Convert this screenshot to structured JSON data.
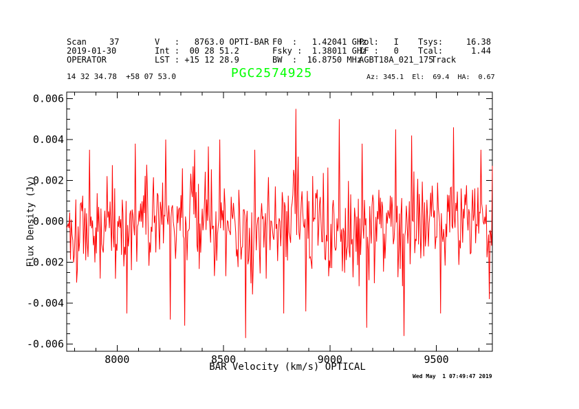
{
  "header": {
    "scan_label": "Scan",
    "scan_value": "37",
    "date": "2019-01-30",
    "operator": "OPERATOR",
    "velocity": "V   :   8763.0 OPTI-BAR",
    "integration": "Int :  00 28 51.2",
    "lst": "LST : +15 12 28.9",
    "f0": "F0  :   1.42041 GHz",
    "fsky": "Fsky :  1.38011 GHz",
    "bandwidth": "BW  :  16.8750 MHz",
    "pol": "Pol:   I",
    "if": "IF :   0",
    "project": "AGBT18A_021_175",
    "procedure": "Track",
    "tsys_label": "Tsys:",
    "tsys_value": "16.38",
    "tcal_label": "Tcal:",
    "tcal_value": "1.44"
  },
  "source": {
    "coords": "14 32 34.78  +58 07 53.0",
    "name": "PGC2574925",
    "azelha": "Az: 345.1  El:  69.4  HA:  0.67"
  },
  "footer": {
    "timestamp": "Wed May  1 07:49:47 2019"
  },
  "colors": {
    "spectrum": "#ff0000",
    "source_name": "#00ff00",
    "axis": "#000000",
    "text": "#000000",
    "background": "#ffffff"
  },
  "chart_data": {
    "type": "line",
    "title": "PGC2574925",
    "xlabel": "BAR Velocity (km/s) OPTICAL",
    "ylabel": "Flux Density (Jy)",
    "xlim": [
      7763,
      9763
    ],
    "ylim": [
      -0.00635,
      0.00632
    ],
    "grid": false,
    "legend": "none",
    "x_ticks": {
      "major_values": [
        8000,
        8500,
        9000,
        9500
      ],
      "major_labels": [
        "8000",
        "8500",
        "9000",
        "9500"
      ],
      "minor_step": 100
    },
    "y_ticks": {
      "major_values": [
        0.006,
        0.004,
        0.002,
        0.0,
        -0.002,
        -0.004,
        -0.006
      ],
      "major_labels": [
        "0.006",
        "0.004",
        "0.002",
        "0.000",
        "-0.002",
        "-0.004",
        "-0.006"
      ],
      "minor_step": 0.0005
    },
    "series_name": "flux density spectrum",
    "noise": {
      "seed": 1337,
      "n_points": 560,
      "sigma": 0.00125,
      "baseline_amp": 0.00035,
      "baseline_period_kms": 630,
      "baseline_min_at_kms": 8560
    },
    "extremes": [
      {
        "x": 7870,
        "y": 0.0035
      },
      {
        "x": 8086,
        "y": 0.0038
      },
      {
        "x": 8047,
        "y": -0.0045
      },
      {
        "x": 8228,
        "y": 0.004
      },
      {
        "x": 8248,
        "y": -0.0048
      },
      {
        "x": 8316,
        "y": -0.0051
      },
      {
        "x": 8364,
        "y": 0.0035
      },
      {
        "x": 8483,
        "y": 0.004
      },
      {
        "x": 8603,
        "y": -0.0057
      },
      {
        "x": 8645,
        "y": 0.0035
      },
      {
        "x": 8784,
        "y": -0.0045
      },
      {
        "x": 8839,
        "y": 0.0055
      },
      {
        "x": 8887,
        "y": -0.0044
      },
      {
        "x": 9043,
        "y": 0.005
      },
      {
        "x": 9152,
        "y": 0.0038
      },
      {
        "x": 9172,
        "y": -0.0052
      },
      {
        "x": 9307,
        "y": 0.0045
      },
      {
        "x": 9349,
        "y": -0.0056
      },
      {
        "x": 9382,
        "y": 0.0042
      },
      {
        "x": 9520,
        "y": -0.0045
      },
      {
        "x": 9582,
        "y": 0.0046
      },
      {
        "x": 9711,
        "y": 0.0035
      },
      {
        "x": 9750,
        "y": -0.0038
      }
    ]
  }
}
